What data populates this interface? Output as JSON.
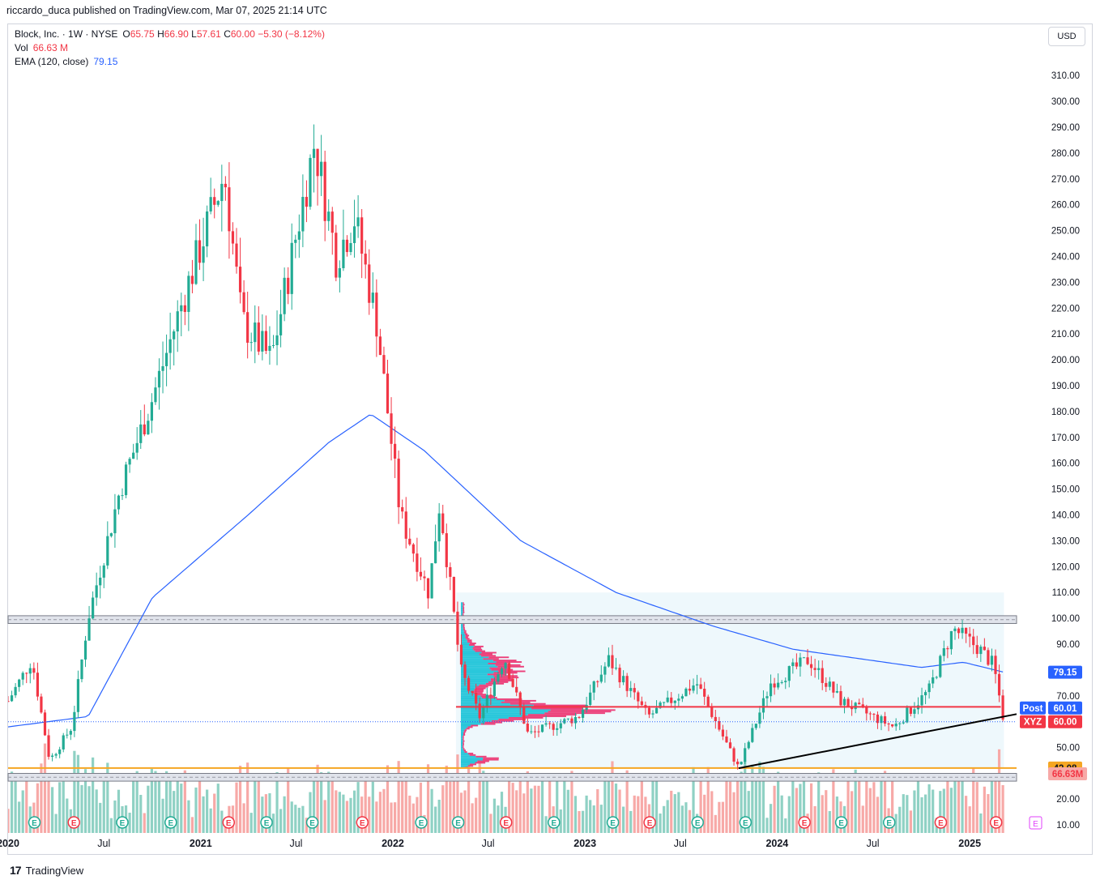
{
  "publisher": {
    "user": "riccardo_duca",
    "text": "riccardo_duca published on TradingView.com, Mar 07, 2025 21:14 UTC"
  },
  "legend": {
    "symbol": "Block, Inc. · 1W · NYSE",
    "open_label": "O",
    "open": "65.75",
    "high_label": "H",
    "high": "66.90",
    "low_label": "L",
    "low": "57.61",
    "close_label": "C",
    "close": "60.00",
    "change": "−5.30 (−8.12%)",
    "vol_label": "Vol",
    "vol": "66.63 M",
    "ema_label": "EMA (120, close)",
    "ema": "79.15"
  },
  "currency": "USD",
  "brand": "TradingView",
  "colors": {
    "up": "#22ab94",
    "down": "#f23645",
    "ema": "#2962ff",
    "up_vol": "#8fd1c4",
    "down_vol": "#f7a9a7",
    "profile_up": "#26c6da",
    "profile_down": "#ec407a",
    "box": "#e8f5fb",
    "support": "#f5a623"
  },
  "chart_data": {
    "type": "candlestick",
    "title": "Block, Inc. · 1W · NYSE",
    "ylim": [
      10,
      310
    ],
    "y_ticks": [
      "10.00",
      "20.00",
      "50.00",
      "60.00",
      "70.00",
      "80.00",
      "90.00",
      "100.00",
      "110.00",
      "120.00",
      "130.00",
      "140.00",
      "150.00",
      "160.00",
      "170.00",
      "180.00",
      "190.00",
      "200.00",
      "210.00",
      "220.00",
      "230.00",
      "240.00",
      "250.00",
      "260.00",
      "270.00",
      "280.00",
      "290.00",
      "300.00",
      "310.00"
    ],
    "x_ticks": [
      "2020",
      "Jul",
      "2021",
      "Jul",
      "2022",
      "Jul",
      "2023",
      "Jul",
      "2024",
      "Jul",
      "2025"
    ],
    "x_range": [
      "2020-01-01",
      "2025-03-31"
    ],
    "price_path": [
      [
        "2020-01-01",
        68
      ],
      [
        "2020-02-15",
        84
      ],
      [
        "2020-03-20",
        45
      ],
      [
        "2020-05-01",
        58
      ],
      [
        "2020-06-01",
        100
      ],
      [
        "2020-08-01",
        150
      ],
      [
        "2020-10-01",
        185
      ],
      [
        "2020-12-01",
        225
      ],
      [
        "2021-02-15",
        272
      ],
      [
        "2021-03-20",
        215
      ],
      [
        "2021-05-15",
        200
      ],
      [
        "2021-08-05",
        284
      ],
      [
        "2021-09-15",
        240
      ],
      [
        "2021-10-20",
        255
      ],
      [
        "2021-12-01",
        215
      ],
      [
        "2022-01-15",
        140
      ],
      [
        "2022-03-10",
        110
      ],
      [
        "2022-03-31",
        145
      ],
      [
        "2022-05-10",
        80
      ],
      [
        "2022-06-15",
        62
      ],
      [
        "2022-08-01",
        85
      ],
      [
        "2022-09-15",
        55
      ],
      [
        "2022-12-20",
        62
      ],
      [
        "2023-02-15",
        84
      ],
      [
        "2023-05-01",
        62
      ],
      [
        "2023-08-01",
        75
      ],
      [
        "2023-10-20",
        42
      ],
      [
        "2023-12-20",
        75
      ],
      [
        "2024-03-01",
        84
      ],
      [
        "2024-05-01",
        68
      ],
      [
        "2024-08-10",
        58
      ],
      [
        "2024-10-15",
        72
      ],
      [
        "2024-12-01",
        96
      ],
      [
        "2025-01-20",
        88
      ],
      [
        "2025-02-15",
        82
      ],
      [
        "2025-03-07",
        60
      ]
    ],
    "ema_path": [
      [
        "2020-01-01",
        58
      ],
      [
        "2020-06-01",
        62
      ],
      [
        "2020-10-01",
        108
      ],
      [
        "2021-04-01",
        140
      ],
      [
        "2021-09-01",
        168
      ],
      [
        "2021-11-20",
        179
      ],
      [
        "2022-03-01",
        165
      ],
      [
        "2022-09-01",
        130
      ],
      [
        "2023-03-01",
        110
      ],
      [
        "2023-09-01",
        97
      ],
      [
        "2024-02-01",
        88
      ],
      [
        "2024-10-01",
        81
      ],
      [
        "2024-12-20",
        83
      ],
      [
        "2025-03-07",
        79.15
      ]
    ],
    "annotations": {
      "resistance_zone": [
        98,
        101
      ],
      "support_zone": [
        37,
        40
      ],
      "horizontal_line": 65.75,
      "support_level": 42.08,
      "trendline": [
        [
          "2023-10-20",
          42
        ],
        [
          "2025-03-07",
          62
        ]
      ],
      "range_box": {
        "from": "2022-05-01",
        "to": "2025-03-07",
        "low": 42,
        "high": 110
      }
    },
    "price_labels": {
      "ema": "79.15",
      "post_label": "Post",
      "post": "60.01",
      "ticker": "XYZ",
      "last": "60.00",
      "support": "42.08",
      "volume": "66.63M"
    },
    "earnings_marker": "E"
  }
}
